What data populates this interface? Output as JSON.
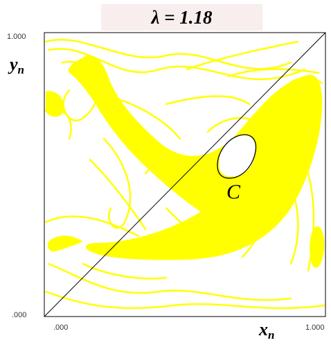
{
  "title": "λ = 1.18",
  "x_axis": {
    "tick_min": ".000",
    "tick_max": "1.000",
    "label_base": "x",
    "label_sub": "n"
  },
  "y_axis": {
    "tick_min": ".000",
    "tick_max": "1.000",
    "label_base": "y",
    "label_sub": "n"
  },
  "curve_label": "C",
  "colors": {
    "chaotic_region": "#ffff00",
    "diagonal": "#000000",
    "frame": "#000000",
    "curve": "#000000"
  }
}
